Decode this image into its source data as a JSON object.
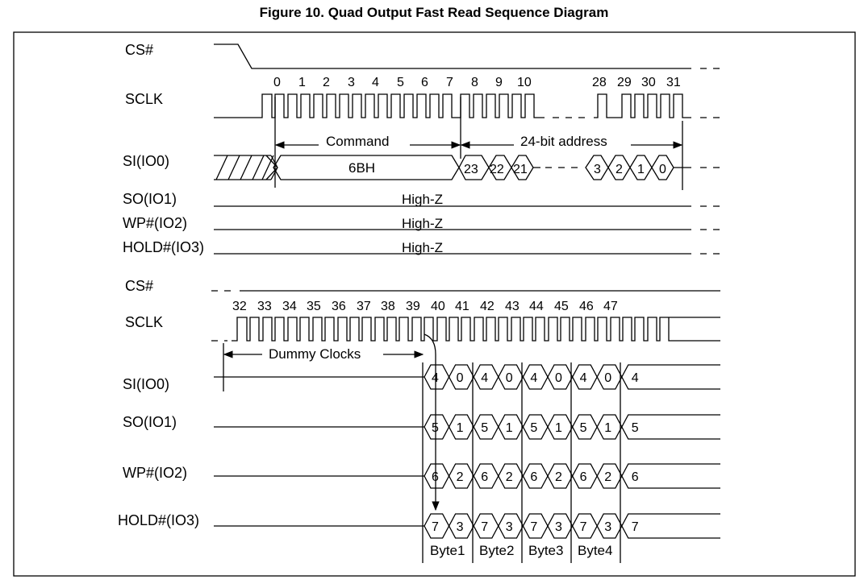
{
  "figure": {
    "title": "Figure 10. Quad Output Fast Read Sequence Diagram"
  },
  "top": {
    "signals": [
      "CS#",
      "SCLK",
      "SI(IO0)",
      "SO(IO1)",
      "WP#(IO2)",
      "HOLD#(IO3)"
    ],
    "clock_numbers": [
      "0",
      "1",
      "2",
      "3",
      "4",
      "5",
      "6",
      "7",
      "8",
      "9",
      "10",
      "28",
      "29",
      "30",
      "31"
    ],
    "command_label": "Command",
    "address_label": "24-bit address",
    "command_value": "6BH",
    "address_bits": [
      "23",
      "22",
      "21",
      "3",
      "2",
      "1",
      "0"
    ],
    "highz": [
      "High-Z",
      "High-Z",
      "High-Z"
    ]
  },
  "bottom": {
    "signals": [
      "CS#",
      "SCLK",
      "SI(IO0)",
      "SO(IO1)",
      "WP#(IO2)",
      "HOLD#(IO3)"
    ],
    "clock_numbers": [
      "32",
      "33",
      "34",
      "35",
      "36",
      "37",
      "38",
      "39",
      "40",
      "41",
      "42",
      "43",
      "44",
      "45",
      "46",
      "47"
    ],
    "dummy_label": "Dummy Clocks",
    "io_bits": [
      [
        "4",
        "0",
        "4",
        "0",
        "4",
        "0",
        "4",
        "0",
        "4"
      ],
      [
        "5",
        "1",
        "5",
        "1",
        "5",
        "1",
        "5",
        "1",
        "5"
      ],
      [
        "6",
        "2",
        "6",
        "2",
        "6",
        "2",
        "6",
        "2",
        "6"
      ],
      [
        "7",
        "3",
        "7",
        "3",
        "7",
        "3",
        "7",
        "3",
        "7"
      ]
    ],
    "byte_labels": [
      "Byte1",
      "Byte2",
      "Byte3",
      "Byte4"
    ]
  }
}
